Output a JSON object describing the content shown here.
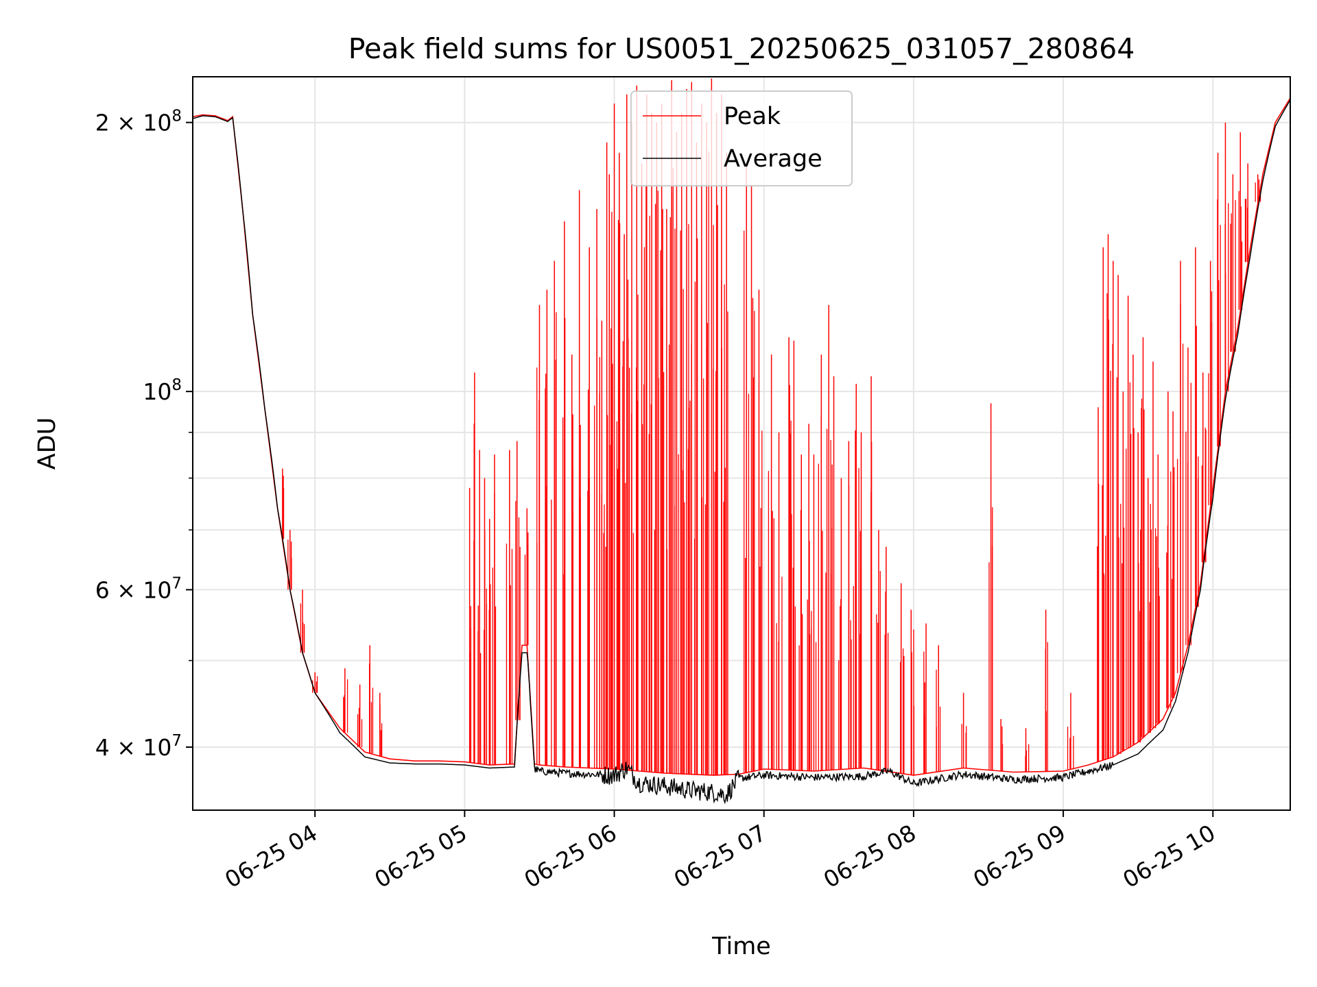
{
  "chart_data": {
    "type": "line",
    "title": "Peak field sums for US0051_20250625_031057_280864",
    "xlabel": "Time",
    "ylabel": "ADU",
    "y_scale": "log",
    "ylim": [
      34000000,
      225000000
    ],
    "xlim": [
      "06-25 03:11",
      "06-25 10:31"
    ],
    "grid": true,
    "legend_position": "upper center",
    "x_ticks": [
      {
        "value": "06-25 04:00",
        "label": "06-25 04"
      },
      {
        "value": "06-25 05:00",
        "label": "06-25 05"
      },
      {
        "value": "06-25 06:00",
        "label": "06-25 06"
      },
      {
        "value": "06-25 07:00",
        "label": "06-25 07"
      },
      {
        "value": "06-25 08:00",
        "label": "06-25 08"
      },
      {
        "value": "06-25 09:00",
        "label": "06-25 09"
      },
      {
        "value": "06-25 10:00",
        "label": "06-25 10"
      }
    ],
    "y_ticks": [
      {
        "value": 200000000,
        "mantissa": "2",
        "exponent": "8"
      },
      {
        "value": 100000000,
        "mantissa": "",
        "exponent": "8"
      },
      {
        "value": 60000000,
        "mantissa": "6",
        "exponent": "7"
      },
      {
        "value": 40000000,
        "mantissa": "4",
        "exponent": "7"
      }
    ],
    "y_minor_ticks": [
      50000000,
      70000000,
      80000000,
      90000000
    ],
    "series": [
      {
        "name": "Peak",
        "color": "#ff0000",
        "baseline": {
          "x": [
            "06-25 03:11",
            "06-25 03:15",
            "06-25 03:20",
            "06-25 03:25",
            "06-25 03:27",
            "06-25 03:31",
            "06-25 03:35",
            "06-25 03:40",
            "06-25 03:45",
            "06-25 03:50",
            "06-25 03:55",
            "06-25 04:00",
            "06-25 04:10",
            "06-25 04:20",
            "06-25 04:30",
            "06-25 04:40",
            "06-25 04:50",
            "06-25 05:00",
            "06-25 05:10",
            "06-25 05:20",
            "06-25 05:23",
            "06-25 05:25",
            "06-25 05:28",
            "06-25 05:30",
            "06-25 05:40",
            "06-25 06:00",
            "06-25 06:20",
            "06-25 06:40",
            "06-25 06:50",
            "06-25 07:00",
            "06-25 07:20",
            "06-25 07:40",
            "06-25 08:00",
            "06-25 08:20",
            "06-25 08:40",
            "06-25 09:00",
            "06-25 09:10",
            "06-25 09:20",
            "06-25 09:30",
            "06-25 09:40",
            "06-25 09:45",
            "06-25 09:50",
            "06-25 09:55",
            "06-25 10:00",
            "06-25 10:05",
            "06-25 10:10",
            "06-25 10:15",
            "06-25 10:20",
            "06-25 10:25",
            "06-25 10:31"
          ],
          "y": [
            203000000,
            204000000,
            203500000,
            201000000,
            203000000,
            160000000,
            122000000,
            95000000,
            74000000,
            60000000,
            51000000,
            46000000,
            42000000,
            39500000,
            38800000,
            38600000,
            38600000,
            38500000,
            38200000,
            38300000,
            52000000,
            52000000,
            38300000,
            38200000,
            38000000,
            37800000,
            37400000,
            37200000,
            37300000,
            37800000,
            37600000,
            37900000,
            37200000,
            37900000,
            37500000,
            37600000,
            38200000,
            39000000,
            40500000,
            43000000,
            46000000,
            52000000,
            61000000,
            78000000,
            100000000,
            118000000,
            145000000,
            175000000,
            200000000,
            213000000
          ]
        },
        "spikes": [
          {
            "x": "06-25 03:47",
            "y": 82000000
          },
          {
            "x": "06-25 03:50",
            "y": 70000000
          },
          {
            "x": "06-25 03:55",
            "y": 60000000
          },
          {
            "x": "06-25 04:00",
            "y": 48500000
          },
          {
            "x": "06-25 04:12",
            "y": 49000000
          },
          {
            "x": "06-25 04:18",
            "y": 47000000
          },
          {
            "x": "06-25 04:22",
            "y": 52000000
          },
          {
            "x": "06-25 04:26",
            "y": 46000000
          },
          {
            "x": "06-25 05:02",
            "y": 78000000
          },
          {
            "x": "06-25 05:04",
            "y": 105000000
          },
          {
            "x": "06-25 05:06",
            "y": 86000000
          },
          {
            "x": "06-25 05:08",
            "y": 80000000
          },
          {
            "x": "06-25 05:10",
            "y": 72000000
          },
          {
            "x": "06-25 05:12",
            "y": 85000000
          },
          {
            "x": "06-25 05:18",
            "y": 86000000
          },
          {
            "x": "06-25 05:21",
            "y": 88000000
          },
          {
            "x": "06-25 05:25",
            "y": 74000000
          },
          {
            "x": "06-25 05:30",
            "y": 125000000
          },
          {
            "x": "06-25 05:33",
            "y": 130000000
          },
          {
            "x": "06-25 05:36",
            "y": 140000000
          },
          {
            "x": "06-25 05:40",
            "y": 155000000
          },
          {
            "x": "06-25 05:43",
            "y": 110000000
          },
          {
            "x": "06-25 05:46",
            "y": 168000000
          },
          {
            "x": "06-25 05:50",
            "y": 145000000
          },
          {
            "x": "06-25 05:53",
            "y": 160000000
          },
          {
            "x": "06-25 05:55",
            "y": 120000000
          },
          {
            "x": "06-25 05:57",
            "y": 190000000
          },
          {
            "x": "06-25 05:58",
            "y": 175000000
          },
          {
            "x": "06-25 06:00",
            "y": 210000000
          },
          {
            "x": "06-25 06:02",
            "y": 185000000
          },
          {
            "x": "06-25 06:04",
            "y": 150000000
          },
          {
            "x": "06-25 06:05",
            "y": 215000000
          },
          {
            "x": "06-25 06:07",
            "y": 200000000
          },
          {
            "x": "06-25 06:09",
            "y": 220000000
          },
          {
            "x": "06-25 06:11",
            "y": 180000000
          },
          {
            "x": "06-25 06:13",
            "y": 215000000
          },
          {
            "x": "06-25 06:15",
            "y": 205000000
          },
          {
            "x": "06-25 06:17",
            "y": 200000000
          },
          {
            "x": "06-25 06:19",
            "y": 210000000
          },
          {
            "x": "06-25 06:21",
            "y": 160000000
          },
          {
            "x": "06-25 06:23",
            "y": 223000000
          },
          {
            "x": "06-25 06:25",
            "y": 195000000
          },
          {
            "x": "06-25 06:27",
            "y": 205000000
          },
          {
            "x": "06-25 06:29",
            "y": 218000000
          },
          {
            "x": "06-25 06:31",
            "y": 222000000
          },
          {
            "x": "06-25 06:33",
            "y": 190000000
          },
          {
            "x": "06-25 06:35",
            "y": 210000000
          },
          {
            "x": "06-25 06:37",
            "y": 200000000
          },
          {
            "x": "06-25 06:39",
            "y": 224000000
          },
          {
            "x": "06-25 06:41",
            "y": 205000000
          },
          {
            "x": "06-25 06:43",
            "y": 215000000
          },
          {
            "x": "06-25 06:45",
            "y": 185000000
          },
          {
            "x": "06-25 06:53",
            "y": 180000000
          },
          {
            "x": "06-25 06:55",
            "y": 170000000
          },
          {
            "x": "06-25 06:58",
            "y": 130000000
          },
          {
            "x": "06-25 07:03",
            "y": 110000000
          },
          {
            "x": "06-25 07:06",
            "y": 90000000
          },
          {
            "x": "06-25 07:10",
            "y": 115000000
          },
          {
            "x": "06-25 07:12",
            "y": 114000000
          },
          {
            "x": "06-25 07:15",
            "y": 85000000
          },
          {
            "x": "06-25 07:18",
            "y": 92000000
          },
          {
            "x": "06-25 07:20",
            "y": 85000000
          },
          {
            "x": "06-25 07:23",
            "y": 110000000
          },
          {
            "x": "06-25 07:26",
            "y": 125000000
          },
          {
            "x": "06-25 07:28",
            "y": 104000000
          },
          {
            "x": "06-25 07:31",
            "y": 80000000
          },
          {
            "x": "06-25 07:34",
            "y": 88000000
          },
          {
            "x": "06-25 07:37",
            "y": 102000000
          },
          {
            "x": "06-25 07:39",
            "y": 90000000
          },
          {
            "x": "06-25 07:43",
            "y": 104000000
          },
          {
            "x": "06-25 07:46",
            "y": 70000000
          },
          {
            "x": "06-25 07:49",
            "y": 67000000
          },
          {
            "x": "06-25 07:55",
            "y": 61000000
          },
          {
            "x": "06-25 07:59",
            "y": 57000000
          },
          {
            "x": "06-25 08:05",
            "y": 55000000
          },
          {
            "x": "06-25 08:10",
            "y": 52000000
          },
          {
            "x": "06-25 08:20",
            "y": 46000000
          },
          {
            "x": "06-25 08:31",
            "y": 97000000
          },
          {
            "x": "06-25 08:35",
            "y": 43000000
          },
          {
            "x": "06-25 08:45",
            "y": 42000000
          },
          {
            "x": "06-25 08:53",
            "y": 57000000
          },
          {
            "x": "06-25 09:03",
            "y": 46000000
          },
          {
            "x": "06-25 09:14",
            "y": 96000000
          },
          {
            "x": "06-25 09:16",
            "y": 145000000
          },
          {
            "x": "06-25 09:18",
            "y": 150000000
          },
          {
            "x": "06-25 09:20",
            "y": 140000000
          },
          {
            "x": "06-25 09:22",
            "y": 135000000
          },
          {
            "x": "06-25 09:24",
            "y": 100000000
          },
          {
            "x": "06-25 09:26",
            "y": 128000000
          },
          {
            "x": "06-25 09:28",
            "y": 110000000
          },
          {
            "x": "06-25 09:30",
            "y": 90000000
          },
          {
            "x": "06-25 09:32",
            "y": 115000000
          },
          {
            "x": "06-25 09:34",
            "y": 80000000
          },
          {
            "x": "06-25 09:36",
            "y": 108000000
          },
          {
            "x": "06-25 09:38",
            "y": 85000000
          },
          {
            "x": "06-25 09:42",
            "y": 100000000
          },
          {
            "x": "06-25 09:44",
            "y": 95000000
          },
          {
            "x": "06-25 09:47",
            "y": 140000000
          },
          {
            "x": "06-25 09:50",
            "y": 112000000
          },
          {
            "x": "06-25 09:53",
            "y": 145000000
          },
          {
            "x": "06-25 09:56",
            "y": 105000000
          },
          {
            "x": "06-25 09:59",
            "y": 140000000
          },
          {
            "x": "06-25 10:02",
            "y": 185000000
          },
          {
            "x": "06-25 10:05",
            "y": 200000000
          },
          {
            "x": "06-25 10:08",
            "y": 175000000
          },
          {
            "x": "06-25 10:11",
            "y": 195000000
          },
          {
            "x": "06-25 10:14",
            "y": 180000000
          },
          {
            "x": "06-25 10:18",
            "y": 175000000
          }
        ]
      },
      {
        "name": "Average",
        "color": "#000000",
        "x": [
          "06-25 03:11",
          "06-25 03:15",
          "06-25 03:20",
          "06-25 03:25",
          "06-25 03:27",
          "06-25 03:31",
          "06-25 03:35",
          "06-25 03:40",
          "06-25 03:45",
          "06-25 03:50",
          "06-25 03:55",
          "06-25 04:00",
          "06-25 04:10",
          "06-25 04:20",
          "06-25 04:30",
          "06-25 04:40",
          "06-25 04:50",
          "06-25 05:00",
          "06-25 05:10",
          "06-25 05:20",
          "06-25 05:23",
          "06-25 05:25",
          "06-25 05:28",
          "06-25 05:30",
          "06-25 05:40",
          "06-25 06:00",
          "06-25 06:05",
          "06-25 06:10",
          "06-25 06:20",
          "06-25 06:30",
          "06-25 06:40",
          "06-25 06:45",
          "06-25 06:50",
          "06-25 07:00",
          "06-25 07:20",
          "06-25 07:40",
          "06-25 07:50",
          "06-25 08:00",
          "06-25 08:20",
          "06-25 08:40",
          "06-25 09:00",
          "06-25 09:10",
          "06-25 09:20",
          "06-25 09:30",
          "06-25 09:40",
          "06-25 09:45",
          "06-25 09:50",
          "06-25 09:55",
          "06-25 10:00",
          "06-25 10:05",
          "06-25 10:10",
          "06-25 10:15",
          "06-25 10:20",
          "06-25 10:25",
          "06-25 10:31"
        ],
        "y": [
          202000000,
          203500000,
          203000000,
          200500000,
          202500000,
          160000000,
          122000000,
          95000000,
          74000000,
          60000000,
          51000000,
          46000000,
          41500000,
          39000000,
          38400000,
          38300000,
          38300000,
          38200000,
          37900000,
          38000000,
          51000000,
          51000000,
          37800000,
          37600000,
          37400000,
          37200000,
          37900000,
          36500000,
          36200000,
          35800000,
          35600000,
          35400000,
          36900000,
          37200000,
          37000000,
          37100000,
          37600000,
          36400000,
          37300000,
          36800000,
          37000000,
          37600000,
          38200000,
          39300000,
          41800000,
          45000000,
          51000000,
          60000000,
          76000000,
          98000000,
          116000000,
          142000000,
          172000000,
          198000000,
          212000000
        ]
      }
    ]
  }
}
